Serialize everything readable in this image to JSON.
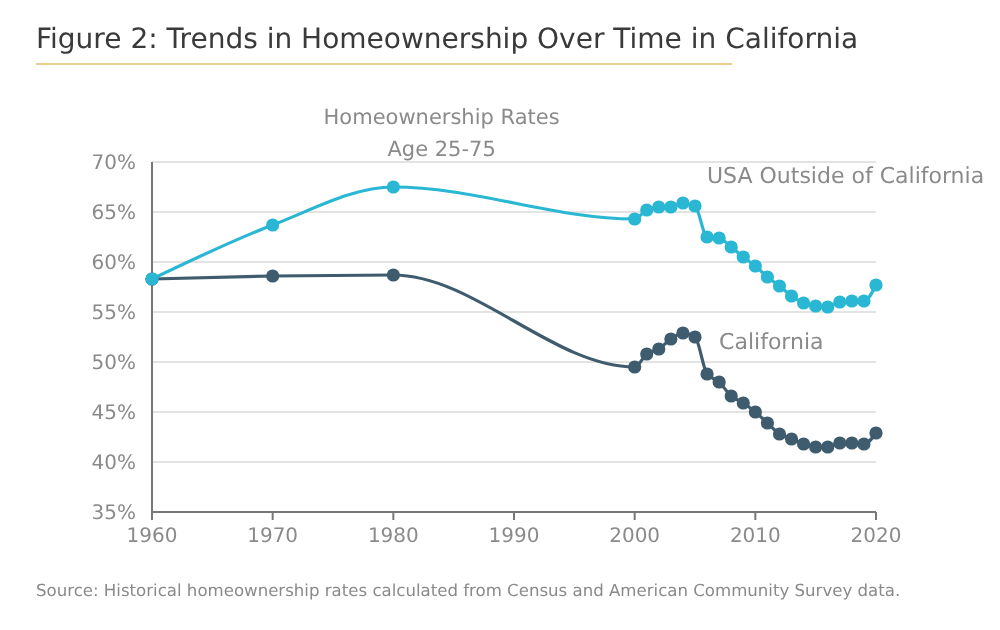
{
  "chart_data": {
    "type": "line",
    "title": "Figure 2: Trends in Homeownership Over Time in California",
    "subtitle": "Homeownership Rates\nAge 25-75",
    "x": [
      1960,
      1970,
      1980,
      2000,
      2001,
      2002,
      2003,
      2004,
      2005,
      2006,
      2007,
      2008,
      2009,
      2010,
      2011,
      2012,
      2013,
      2014,
      2015,
      2016,
      2017,
      2018,
      2019,
      2020
    ],
    "series": [
      {
        "name": "USA Outside of California",
        "color": "#2ab7d3",
        "values": [
          58.3,
          63.7,
          67.5,
          64.3,
          65.2,
          65.5,
          65.5,
          65.9,
          65.6,
          62.5,
          62.4,
          61.5,
          60.5,
          59.6,
          58.5,
          57.6,
          56.6,
          55.9,
          55.6,
          55.5,
          56.0,
          56.1,
          56.1,
          57.7
        ]
      },
      {
        "name": "California",
        "color": "#3f5c6e",
        "values": [
          58.3,
          58.6,
          58.7,
          49.5,
          50.8,
          51.3,
          52.3,
          52.9,
          52.5,
          48.8,
          48.0,
          46.6,
          45.9,
          45.0,
          43.9,
          42.8,
          42.3,
          41.8,
          41.5,
          41.5,
          41.9,
          41.9,
          41.8,
          42.9
        ]
      }
    ],
    "xlim": [
      1960,
      2020
    ],
    "xticks": [
      1960,
      1970,
      1980,
      1990,
      2000,
      2010,
      2020
    ],
    "ylim": [
      35,
      70
    ],
    "yticks": [
      {
        "value": 35,
        "label": "35%"
      },
      {
        "value": 40,
        "label": "40%"
      },
      {
        "value": 45,
        "label": "45%"
      },
      {
        "value": 50,
        "label": "50%"
      },
      {
        "value": 55,
        "label": "55%"
      },
      {
        "value": 60,
        "label": "60%"
      },
      {
        "value": 65,
        "label": "65%"
      },
      {
        "value": 70,
        "label": "70%"
      }
    ],
    "grid": "y",
    "marker": "circle",
    "line_style": "solid",
    "legend": false,
    "annotations": [
      "Source: Historical homeownership rates calculated from Census and American Community Survey data."
    ]
  }
}
